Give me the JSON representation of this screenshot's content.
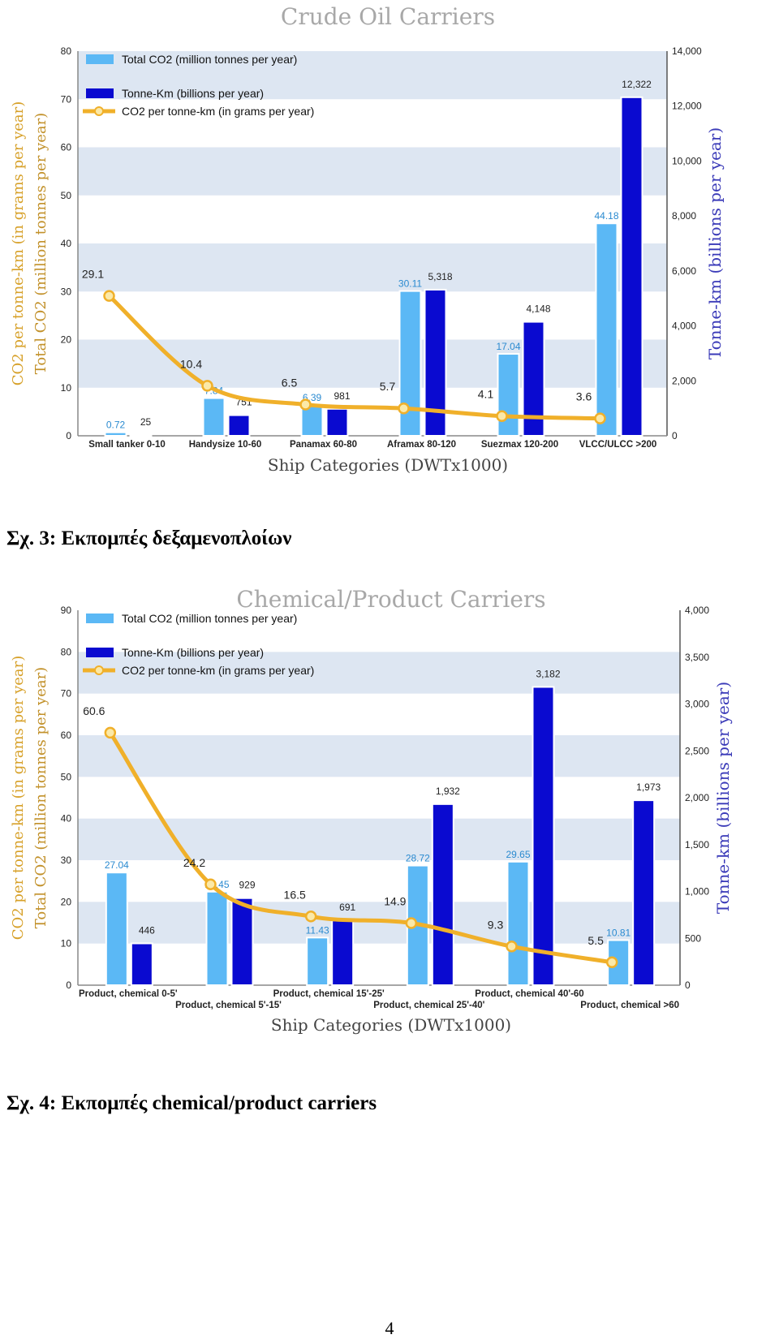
{
  "chart_data": [
    {
      "type": "bar",
      "title": "Crude Oil Carriers",
      "xlabel": "Ship Categories  (DWTx1000)",
      "ylabel_left": [
        "CO2 per tonne-km (in grams per year)",
        "Total CO2 (million tonnes per year)"
      ],
      "ylabel_right": "Tonne-km (billions per year)",
      "ylim_left": [
        0,
        80
      ],
      "ylim_right": [
        0,
        14000
      ],
      "left_ticks": [
        "0",
        "10",
        "20",
        "30",
        "40",
        "50",
        "60",
        "70",
        "80"
      ],
      "right_ticks": [
        "0",
        "2,000",
        "4,000",
        "6,000",
        "8,000",
        "10,000",
        "12,000",
        "14,000"
      ],
      "categories": [
        "Small tanker  0-10",
        "Handysize  10-60",
        "Panamax  60-80",
        "Aframax  80-120",
        "Suezmax  120-200",
        "VLCC/ULCC  >200"
      ],
      "legend": [
        "Total CO2 (million tonnes per year)",
        "Tonne-Km (billions per year)",
        "CO2 per tonne-km (in grams per year)"
      ],
      "series": [
        {
          "name": "Total CO2 (million tonnes per year)",
          "values": [
            0.72,
            7.84,
            6.39,
            30.11,
            17.04,
            44.18
          ],
          "labels": [
            "0.72",
            "7.84",
            "6.39",
            "30.11",
            "17.04",
            "44.18"
          ]
        },
        {
          "name": "Tonne-Km (billions per year)",
          "values": [
            25,
            751,
            981,
            5318,
            4148,
            12322
          ],
          "labels": [
            "25",
            "751",
            "981",
            "5,318",
            "4,148",
            "12,322"
          ]
        },
        {
          "name": "CO2 per tonne-km (in grams per year)",
          "values": [
            29.1,
            10.4,
            6.5,
            5.7,
            4.1,
            3.6
          ],
          "labels": [
            "29.1",
            "10.4",
            "6.5",
            "5.7",
            "4.1",
            "3.6"
          ]
        }
      ],
      "grid": true,
      "legend_position": "top-left"
    },
    {
      "type": "bar",
      "title": "Chemical/Product Carriers",
      "xlabel": "Ship Categories  (DWTx1000)",
      "ylabel_left": [
        "CO2 per tonne-km (in grams per year)",
        "Total CO2 (million tonnes per year)"
      ],
      "ylabel_right": "Tonne-km (billions per year)",
      "ylim_left": [
        0,
        90
      ],
      "ylim_right": [
        0,
        4000
      ],
      "left_ticks": [
        "0",
        "10",
        "20",
        "30",
        "40",
        "50",
        "60",
        "70",
        "80",
        "90"
      ],
      "right_ticks": [
        "0",
        "500",
        "1,000",
        "1,500",
        "2,000",
        "2,500",
        "3,000",
        "3,500",
        "4,000"
      ],
      "categories": [
        "Product, chemical 0-5'",
        "Product, chemical 5'-15'",
        "Product, chemical 15'-25'",
        "Product, chemical 25'-40'",
        "Product, chemical 40'-60",
        "Product, chemical  >60"
      ],
      "legend": [
        "Total CO2 (million tonnes per year)",
        "Tonne-Km (billions per year)",
        "CO2 per tonne-km (in grams per year)"
      ],
      "series": [
        {
          "name": "Total CO2 (million tonnes per year)",
          "values": [
            27.04,
            22.45,
            11.43,
            28.72,
            29.65,
            10.81
          ],
          "labels": [
            "27.04",
            "22.45",
            "11.43",
            "28.72",
            "29.65",
            "10.81"
          ]
        },
        {
          "name": "Tonne-Km (billions per year)",
          "values": [
            446,
            929,
            691,
            1932,
            3182,
            1973
          ],
          "labels": [
            "446",
            "929",
            "691",
            "1,932",
            "3,182",
            "1,973"
          ]
        },
        {
          "name": "CO2 per tonne-km (in grams per year)",
          "values": [
            60.6,
            24.2,
            16.5,
            14.9,
            9.3,
            5.5
          ],
          "labels": [
            "60.6",
            "24.2",
            "16.5",
            "14.9",
            "9.3",
            "5.5"
          ]
        }
      ],
      "grid": true,
      "legend_position": "top-left"
    }
  ],
  "captions": [
    "Σχ. 3: Εκπομπές δεξαμενοπλοίων",
    "Σχ. 4: Εκπομπές chemical/product carriers"
  ],
  "page_number": "4",
  "colors": {
    "co2_bar": "#5bb8f5",
    "tonne_km_bar": "#0a0ad0",
    "co2_per_tkm_line": "#f0b02a",
    "band": "#dde6f2",
    "title_text": "#a8a8a8",
    "left_label": "#d7a12a",
    "left_label_2": "#c2912a",
    "right_label": "#3a3ab8"
  }
}
